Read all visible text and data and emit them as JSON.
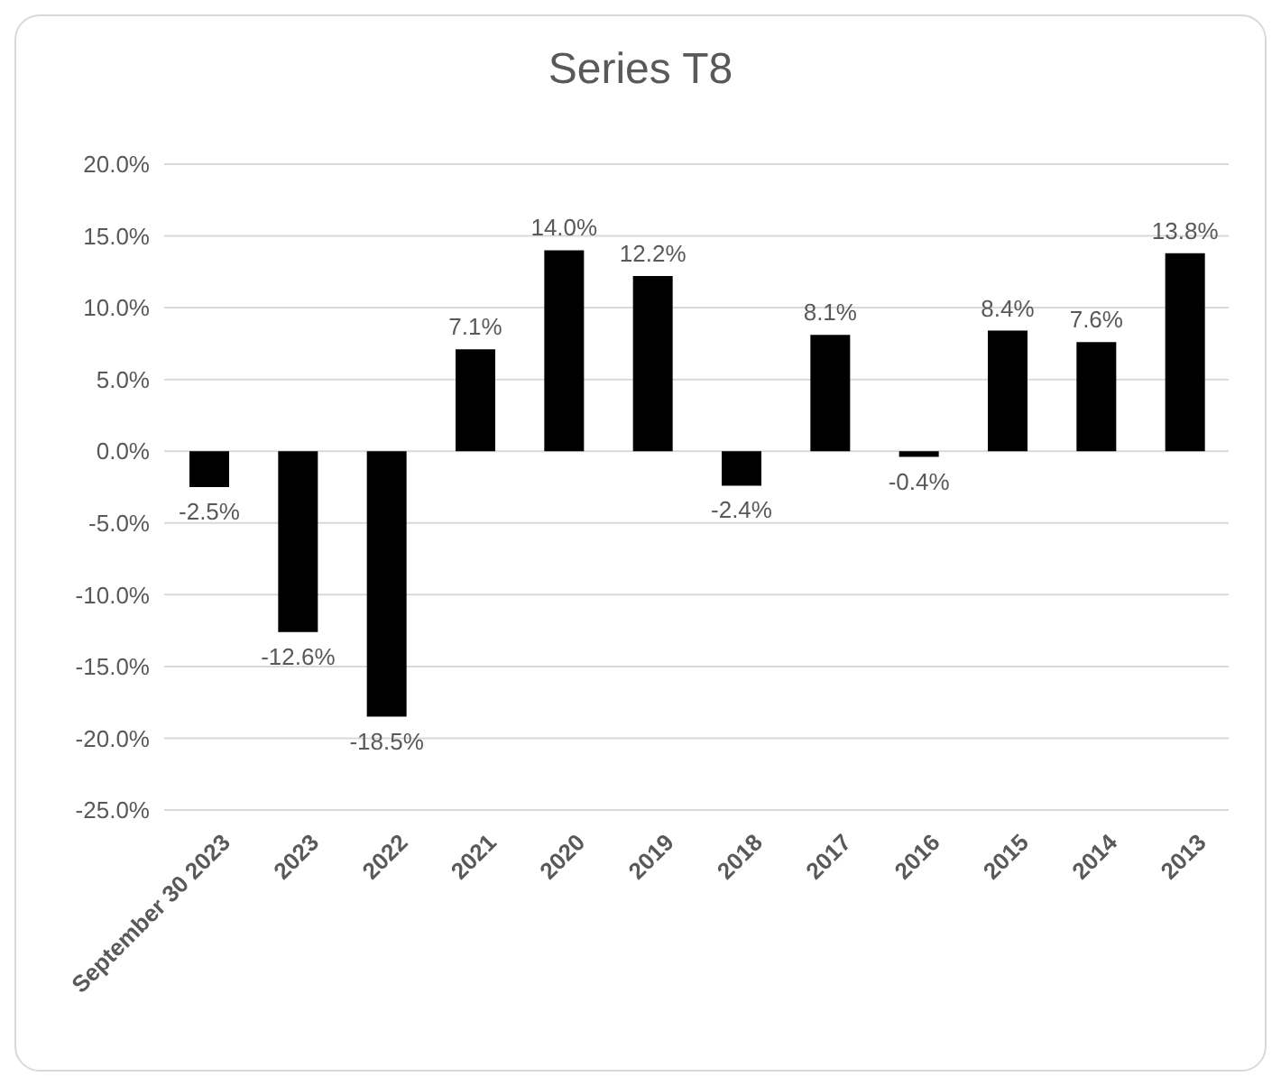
{
  "chart_data": {
    "type": "bar",
    "title": "Series T8",
    "categories": [
      "September 30 2023",
      "2023",
      "2022",
      "2021",
      "2020",
      "2019",
      "2018",
      "2017",
      "2016",
      "2015",
      "2014",
      "2013"
    ],
    "values": [
      -2.5,
      -12.6,
      -18.5,
      7.1,
      14.0,
      12.2,
      -2.4,
      8.1,
      -0.4,
      8.4,
      7.6,
      13.8
    ],
    "value_labels": [
      "-2.5%",
      "-12.6%",
      "-18.5%",
      "7.1%",
      "14.0%",
      "12.2%",
      "-2.4%",
      "8.1%",
      "-0.4%",
      "8.4%",
      "7.6%",
      "13.8%"
    ],
    "color": "#000000",
    "ylim": [
      -25,
      20
    ],
    "yticks": [
      {
        "value": -25,
        "label": "-25.0%"
      },
      {
        "value": -20,
        "label": "-20.0%"
      },
      {
        "value": -15,
        "label": "-15.0%"
      },
      {
        "value": -10,
        "label": "-10.0%"
      },
      {
        "value": -5,
        "label": "-5.0%"
      },
      {
        "value": 0,
        "label": "0.0%"
      },
      {
        "value": 5,
        "label": "5.0%"
      },
      {
        "value": 10,
        "label": "10.0%"
      },
      {
        "value": 15,
        "label": "15.0%"
      },
      {
        "value": 20,
        "label": "20.0%"
      }
    ],
    "grid": "y",
    "legend": false
  }
}
